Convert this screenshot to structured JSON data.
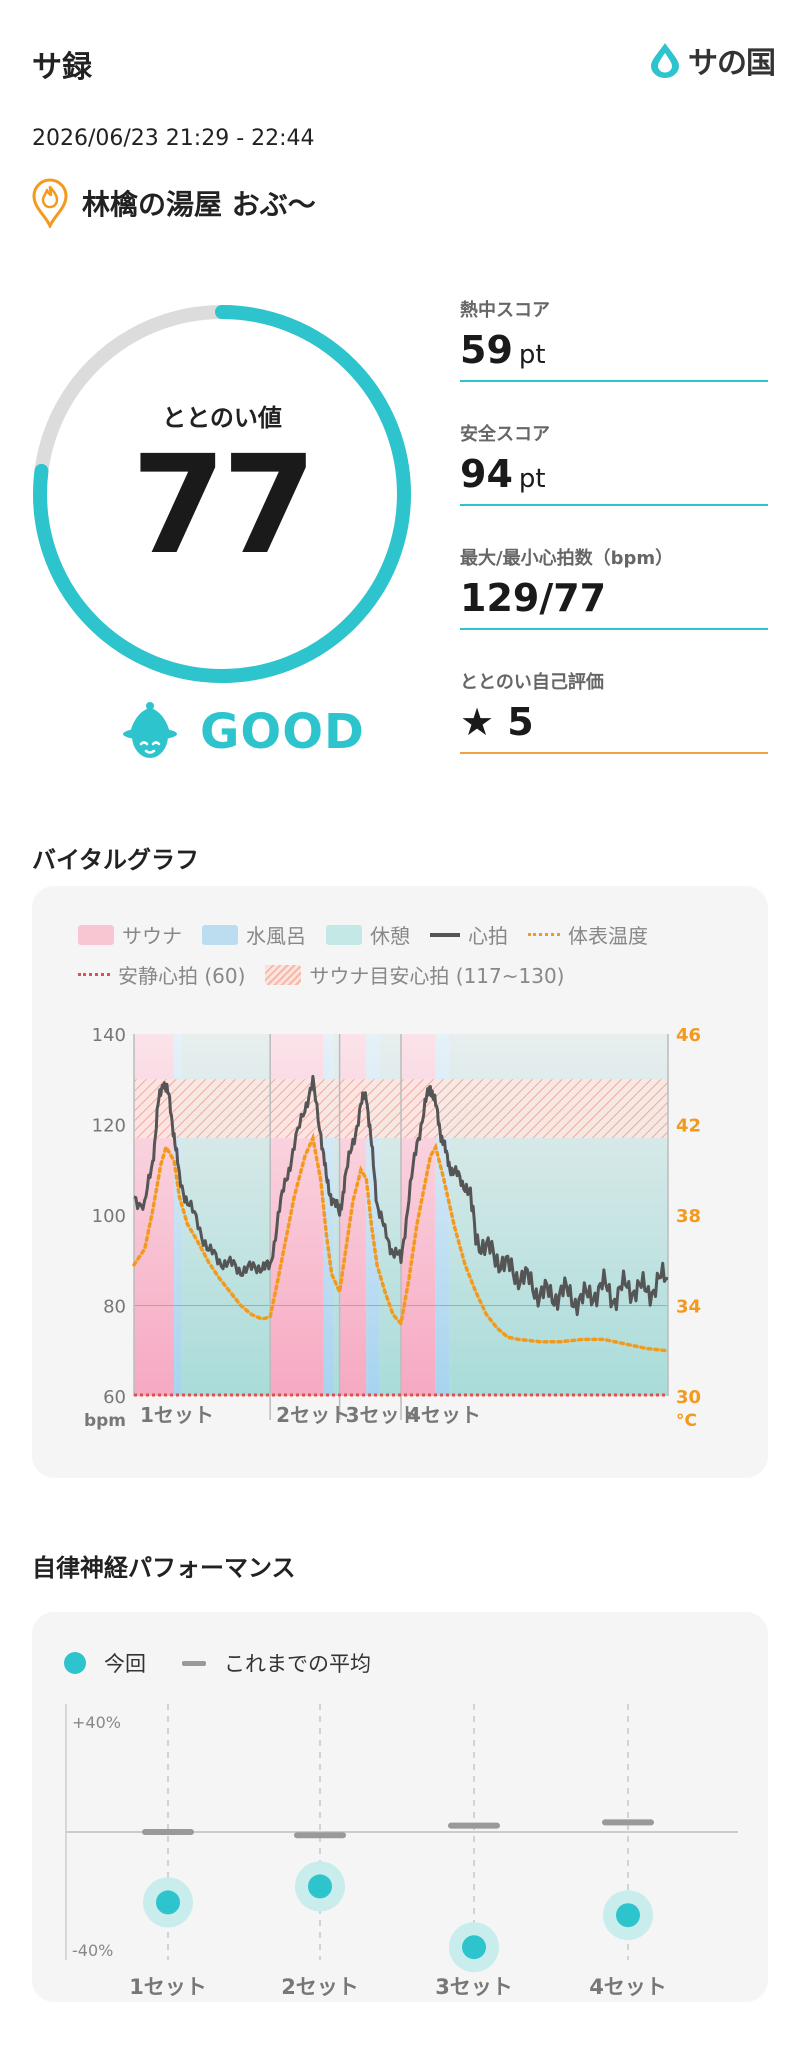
{
  "header": {
    "title": "サ録",
    "logo_text": "サの国"
  },
  "session": {
    "datetime": "2026/06/23 21:29 - 22:44",
    "facility": "林檎の湯屋 おぶ〜"
  },
  "gauge": {
    "label": "ととのい値",
    "value": "77",
    "fraction": 0.77
  },
  "rating": {
    "label": "GOOD"
  },
  "metrics": {
    "heat": {
      "label": "熱中スコア",
      "value": "59",
      "unit": "pt"
    },
    "safety": {
      "label": "安全スコア",
      "value": "94",
      "unit": "pt"
    },
    "heart": {
      "label": "最大/最小心拍数（bpm）",
      "value": "129/77"
    },
    "self": {
      "label": "ととのい自己評価",
      "value": "★ 5"
    }
  },
  "vital": {
    "title": "バイタルグラフ",
    "legend": {
      "sauna": "サウナ",
      "cold": "水風呂",
      "rest": "休憩",
      "hr": "心拍",
      "temp": "体表温度",
      "resting": "安静心拍 (60)",
      "target": "サウナ目安心拍 (117~130)"
    },
    "colors": {
      "sauna": "#f7c6d2",
      "cold": "#bcdcf0",
      "rest": "#c3e8e6",
      "hr": "#555555",
      "temp": "#f39a1e",
      "resting": "#d9534f",
      "target": "#f0a090"
    }
  },
  "chart_data": [
    {
      "type": "line",
      "title": "",
      "left_axis": {
        "label": "bpm",
        "ticks": [
          "140",
          "120",
          "100",
          "80",
          "60"
        ],
        "range": [
          60,
          140
        ]
      },
      "right_axis": {
        "label": "°C",
        "ticks": [
          "46",
          "42",
          "38",
          "34",
          "30"
        ],
        "range": [
          30,
          46
        ]
      },
      "resting_hr": 60,
      "target_band": [
        117,
        130
      ],
      "sets": [
        {
          "label": "1セット",
          "phases": [
            [
              "sauna",
              0,
              0.075
            ],
            [
              "cold",
              0.075,
              0.09
            ],
            [
              "rest",
              0.09,
              0.255
            ]
          ]
        },
        {
          "label": "2セット",
          "phases": [
            [
              "sauna",
              0.255,
              0.355
            ],
            [
              "cold",
              0.355,
              0.375
            ],
            [
              "rest",
              0.375,
              0.385
            ]
          ]
        },
        {
          "label": "3セット",
          "phases": [
            [
              "sauna",
              0.385,
              0.435
            ],
            [
              "cold",
              0.435,
              0.46
            ],
            [
              "rest",
              0.46,
              0.5
            ]
          ]
        },
        {
          "label": "4セット",
          "phases": [
            [
              "sauna",
              0.5,
              0.565
            ],
            [
              "cold",
              0.565,
              0.59
            ],
            [
              "rest",
              0.59,
              1.0
            ]
          ]
        }
      ],
      "hr_series": [
        [
          0,
          104
        ],
        [
          0.02,
          102
        ],
        [
          0.035,
          112
        ],
        [
          0.045,
          124
        ],
        [
          0.055,
          130
        ],
        [
          0.065,
          126
        ],
        [
          0.075,
          118
        ],
        [
          0.085,
          108
        ],
        [
          0.1,
          103
        ],
        [
          0.12,
          98
        ],
        [
          0.14,
          92
        ],
        [
          0.16,
          90
        ],
        [
          0.18,
          89
        ],
        [
          0.2,
          88
        ],
        [
          0.22,
          88
        ],
        [
          0.24,
          89
        ],
        [
          0.255,
          88
        ],
        [
          0.27,
          100
        ],
        [
          0.285,
          108
        ],
        [
          0.3,
          115
        ],
        [
          0.32,
          124
        ],
        [
          0.335,
          129
        ],
        [
          0.35,
          118
        ],
        [
          0.36,
          108
        ],
        [
          0.37,
          104
        ],
        [
          0.385,
          100
        ],
        [
          0.395,
          108
        ],
        [
          0.41,
          116
        ],
        [
          0.425,
          124
        ],
        [
          0.435,
          127
        ],
        [
          0.445,
          115
        ],
        [
          0.455,
          103
        ],
        [
          0.47,
          96
        ],
        [
          0.485,
          92
        ],
        [
          0.5,
          90
        ],
        [
          0.515,
          104
        ],
        [
          0.53,
          116
        ],
        [
          0.545,
          124
        ],
        [
          0.555,
          129
        ],
        [
          0.565,
          124
        ],
        [
          0.575,
          118
        ],
        [
          0.585,
          113
        ],
        [
          0.595,
          110
        ],
        [
          0.61,
          108
        ],
        [
          0.625,
          106
        ],
        [
          0.64,
          96
        ],
        [
          0.66,
          92
        ],
        [
          0.68,
          91
        ],
        [
          0.7,
          88
        ],
        [
          0.72,
          87
        ],
        [
          0.74,
          85
        ],
        [
          0.76,
          83
        ],
        [
          0.78,
          82
        ],
        [
          0.8,
          83
        ],
        [
          0.82,
          82
        ],
        [
          0.84,
          81
        ],
        [
          0.86,
          83
        ],
        [
          0.88,
          84
        ],
        [
          0.9,
          82
        ],
        [
          0.92,
          84
        ],
        [
          0.94,
          84
        ],
        [
          0.96,
          83
        ],
        [
          0.98,
          85
        ],
        [
          1.0,
          86
        ]
      ],
      "temp_series": [
        [
          0,
          35.8
        ],
        [
          0.02,
          36.5
        ],
        [
          0.035,
          38.2
        ],
        [
          0.05,
          40.2
        ],
        [
          0.06,
          41.0
        ],
        [
          0.075,
          40.4
        ],
        [
          0.085,
          38.8
        ],
        [
          0.1,
          37.6
        ],
        [
          0.12,
          36.8
        ],
        [
          0.14,
          35.9
        ],
        [
          0.16,
          35.2
        ],
        [
          0.18,
          34.6
        ],
        [
          0.2,
          34.0
        ],
        [
          0.22,
          33.6
        ],
        [
          0.24,
          33.4
        ],
        [
          0.255,
          33.5
        ],
        [
          0.27,
          35.2
        ],
        [
          0.285,
          37.0
        ],
        [
          0.3,
          38.8
        ],
        [
          0.32,
          40.6
        ],
        [
          0.335,
          41.4
        ],
        [
          0.35,
          39.5
        ],
        [
          0.36,
          37.2
        ],
        [
          0.37,
          35.4
        ],
        [
          0.385,
          34.6
        ],
        [
          0.395,
          36.2
        ],
        [
          0.41,
          38.6
        ],
        [
          0.425,
          40.0
        ],
        [
          0.435,
          39.6
        ],
        [
          0.445,
          37.5
        ],
        [
          0.455,
          35.8
        ],
        [
          0.47,
          34.6
        ],
        [
          0.485,
          33.6
        ],
        [
          0.5,
          33.2
        ],
        [
          0.515,
          35.2
        ],
        [
          0.53,
          37.6
        ],
        [
          0.545,
          39.4
        ],
        [
          0.555,
          40.6
        ],
        [
          0.565,
          41.0
        ],
        [
          0.58,
          39.6
        ],
        [
          0.6,
          37.5
        ],
        [
          0.62,
          35.8
        ],
        [
          0.64,
          34.6
        ],
        [
          0.66,
          33.6
        ],
        [
          0.68,
          33.0
        ],
        [
          0.7,
          32.6
        ],
        [
          0.72,
          32.5
        ],
        [
          0.76,
          32.4
        ],
        [
          0.8,
          32.4
        ],
        [
          0.84,
          32.5
        ],
        [
          0.88,
          32.5
        ],
        [
          0.92,
          32.3
        ],
        [
          0.96,
          32.1
        ],
        [
          1.0,
          32.0
        ]
      ]
    },
    {
      "type": "scatter",
      "title": "",
      "y_ticks": [
        "+40%",
        "-40%"
      ],
      "ylim": [
        -40,
        40
      ],
      "categories": [
        "1セット",
        "2セット",
        "3セット",
        "4セット"
      ],
      "series": [
        {
          "name": "今回",
          "values": [
            -22,
            -17,
            -36,
            -26
          ]
        },
        {
          "name": "これまでの平均",
          "values": [
            0,
            -1,
            2,
            3
          ]
        }
      ]
    }
  ],
  "ans": {
    "title": "自律神経パフォーマンス",
    "legend_current": "今回",
    "legend_average": "これまでの平均"
  },
  "colors": {
    "accent": "#2ec4cd",
    "orange": "#f2a044",
    "gauge_track": "#dcdcdc"
  }
}
